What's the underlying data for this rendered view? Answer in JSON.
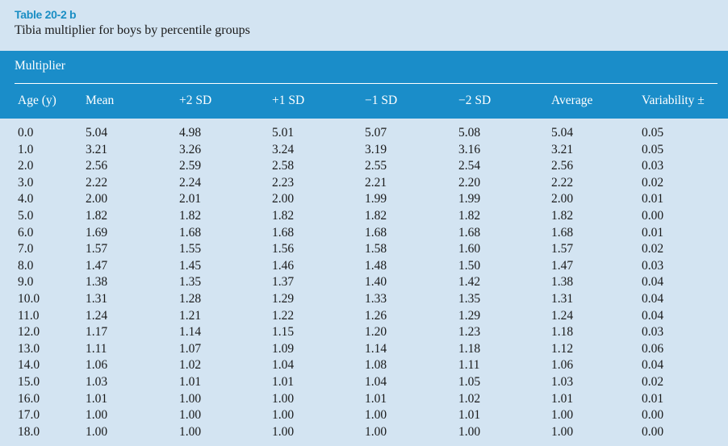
{
  "caption": {
    "label": "Table 20-2 b",
    "title": "Tibia multiplier for boys by percentile groups"
  },
  "header": {
    "group_label": "Multiplier",
    "columns": [
      "Age (y)",
      "Mean",
      "+2 SD",
      "+1 SD",
      "−1 SD",
      "−2 SD",
      "Average",
      "Variability ±"
    ]
  },
  "rows": [
    [
      "0.0",
      "5.04",
      "4.98",
      "5.01",
      "5.07",
      "5.08",
      "5.04",
      "0.05"
    ],
    [
      "1.0",
      "3.21",
      "3.26",
      "3.24",
      "3.19",
      "3.16",
      "3.21",
      "0.05"
    ],
    [
      "2.0",
      "2.56",
      "2.59",
      "2.58",
      "2.55",
      "2.54",
      "2.56",
      "0.03"
    ],
    [
      "3.0",
      "2.22",
      "2.24",
      "2.23",
      "2.21",
      "2.20",
      "2.22",
      "0.02"
    ],
    [
      "4.0",
      "2.00",
      "2.01",
      "2.00",
      "1.99",
      "1.99",
      "2.00",
      "0.01"
    ],
    [
      "5.0",
      "1.82",
      "1.82",
      "1.82",
      "1.82",
      "1.82",
      "1.82",
      "0.00"
    ],
    [
      "6.0",
      "1.69",
      "1.68",
      "1.68",
      "1.68",
      "1.68",
      "1.68",
      "0.01"
    ],
    [
      "7.0",
      "1.57",
      "1.55",
      "1.56",
      "1.58",
      "1.60",
      "1.57",
      "0.02"
    ],
    [
      "8.0",
      "1.47",
      "1.45",
      "1.46",
      "1.48",
      "1.50",
      "1.47",
      "0.03"
    ],
    [
      "9.0",
      "1.38",
      "1.35",
      "1.37",
      "1.40",
      "1.42",
      "1.38",
      "0.04"
    ],
    [
      "10.0",
      "1.31",
      "1.28",
      "1.29",
      "1.33",
      "1.35",
      "1.31",
      "0.04"
    ],
    [
      "11.0",
      "1.24",
      "1.21",
      "1.22",
      "1.26",
      "1.29",
      "1.24",
      "0.04"
    ],
    [
      "12.0",
      "1.17",
      "1.14",
      "1.15",
      "1.20",
      "1.23",
      "1.18",
      "0.03"
    ],
    [
      "13.0",
      "1.11",
      "1.07",
      "1.09",
      "1.14",
      "1.18",
      "1.12",
      "0.06"
    ],
    [
      "14.0",
      "1.06",
      "1.02",
      "1.04",
      "1.08",
      "1.11",
      "1.06",
      "0.04"
    ],
    [
      "15.0",
      "1.03",
      "1.01",
      "1.01",
      "1.04",
      "1.05",
      "1.03",
      "0.02"
    ],
    [
      "16.0",
      "1.01",
      "1.00",
      "1.00",
      "1.01",
      "1.02",
      "1.01",
      "0.01"
    ],
    [
      "17.0",
      "1.00",
      "1.00",
      "1.00",
      "1.00",
      "1.01",
      "1.00",
      "0.00"
    ],
    [
      "18.0",
      "1.00",
      "1.00",
      "1.00",
      "1.00",
      "1.00",
      "1.00",
      "0.00"
    ]
  ]
}
